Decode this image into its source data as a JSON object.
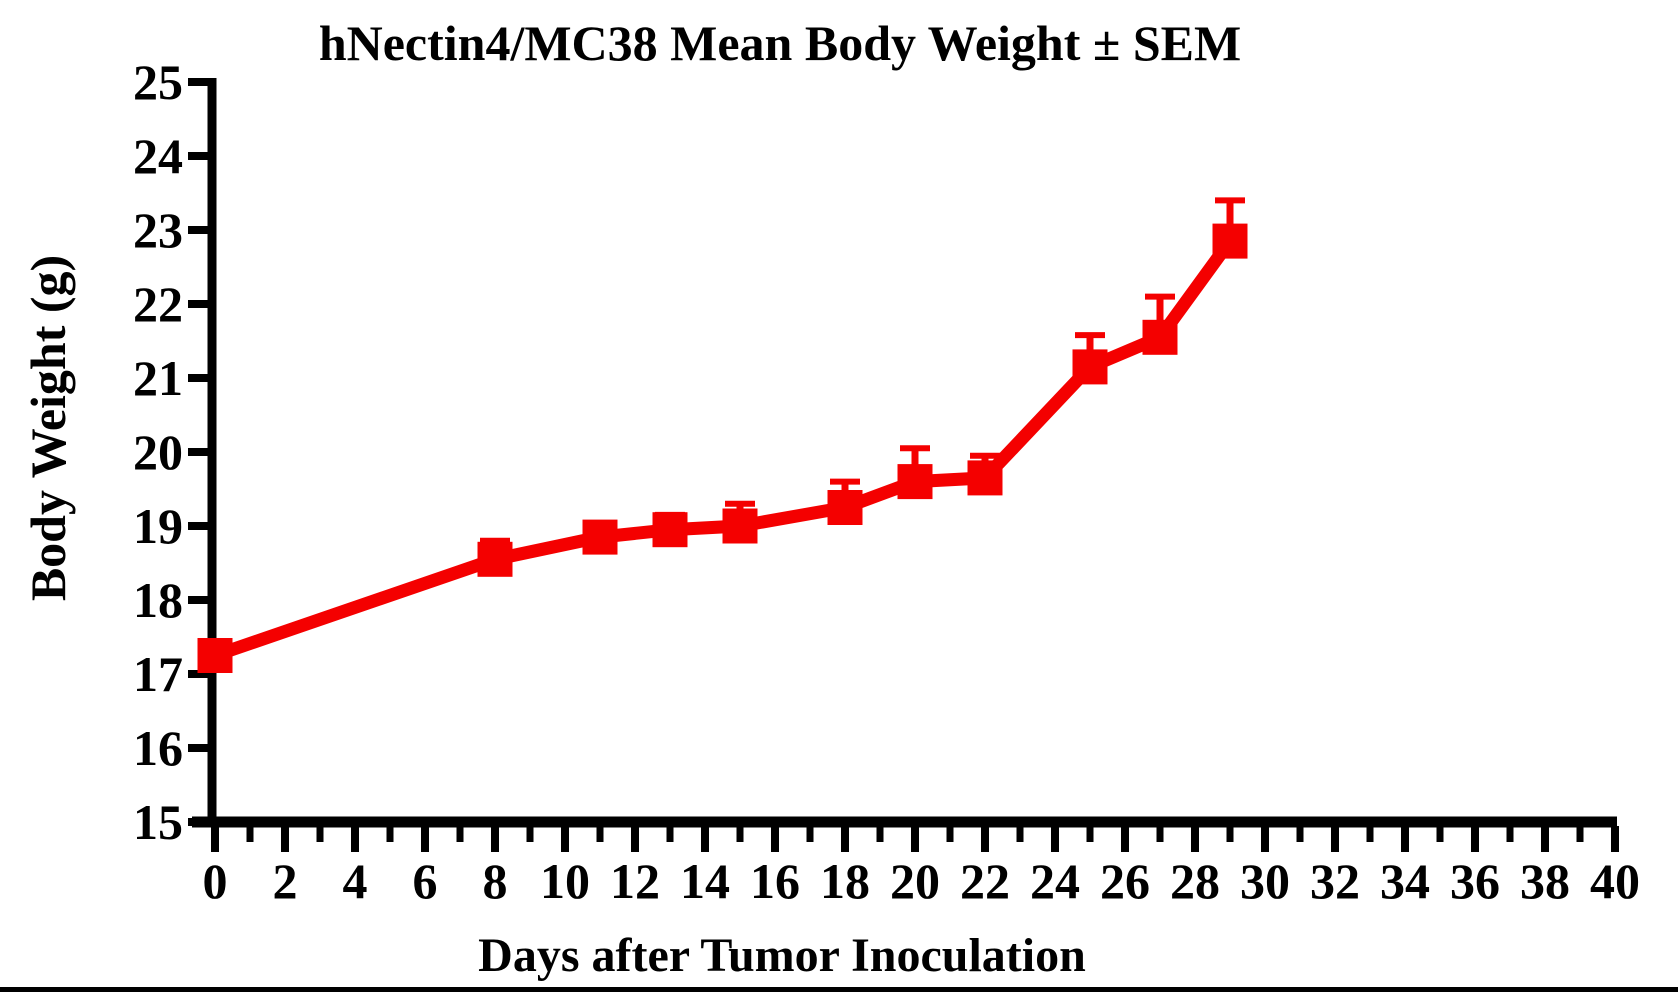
{
  "colors": {
    "series_red": "#F40000",
    "axis_black": "#000000",
    "background": "#FFFFFF"
  },
  "chart_data": {
    "type": "line",
    "title": "hNectin4/MC38 Mean Body Weight ± SEM",
    "xlabel": "Days after Tumor Inoculation",
    "ylabel": "Body Weight (g)",
    "xlim": [
      0,
      40
    ],
    "ylim": [
      15,
      25
    ],
    "x_major_ticks": [
      0,
      2,
      4,
      6,
      8,
      10,
      12,
      14,
      16,
      18,
      20,
      22,
      24,
      26,
      28,
      30,
      32,
      34,
      36,
      38,
      40
    ],
    "x_minor_tick_step": 1,
    "y_ticks": [
      15,
      16,
      17,
      18,
      19,
      20,
      21,
      22,
      23,
      24,
      25
    ],
    "grid": false,
    "legend": false,
    "error_bars": "upper_only",
    "series": [
      {
        "name": "hNectin4/MC38",
        "color": "#F40000",
        "marker": "square",
        "x": [
          0,
          8,
          11,
          13,
          15,
          18,
          20,
          22,
          25,
          27,
          29
        ],
        "mean": [
          17.25,
          18.55,
          18.85,
          18.95,
          19.0,
          19.25,
          19.6,
          19.65,
          21.15,
          21.55,
          22.85
        ],
        "sem_upper": [
          0,
          0.25,
          0.15,
          0.2,
          0.3,
          0.35,
          0.45,
          0.3,
          0.43,
          0.55,
          0.55
        ]
      }
    ]
  }
}
